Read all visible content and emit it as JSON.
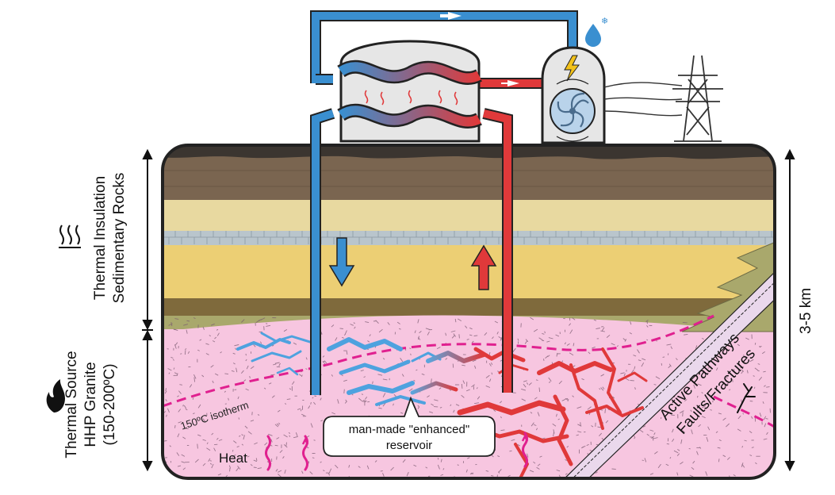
{
  "labels": {
    "insulation_line1": "Thermal Insulation",
    "insulation_line2": "Sedimentary Rocks",
    "source_line1": "Thermal Source",
    "source_line2": "HHP Granite",
    "source_line3": "(150-200ºC)",
    "depth": "3-5 km",
    "isotherm": "150ºC isotherm",
    "reservoir_line1": "man-made \"enhanced\"",
    "reservoir_line2": "reservoir",
    "heat": "Heat",
    "pathways_line1": "Active Pathways",
    "pathways_line2": "Faults/Fractures"
  },
  "icons": {
    "insulation": "heat-waves-icon",
    "source": "flame-icon",
    "water": "water-drop-icon",
    "power": "lightning-icon",
    "grid": "power-pylon-icon"
  },
  "colors": {
    "cold_pipe": "#3a8fd0",
    "hot_pipe": "#e0393a",
    "granite": "#f7c6e0",
    "isotherm": "#e0208f",
    "layer_brown_dark": "#7a6550",
    "layer_sand": "#e8d9a0",
    "layer_limestone": "#b9c5cc",
    "layer_yellow": "#eccf74",
    "layer_olive": "#a9a86c"
  }
}
